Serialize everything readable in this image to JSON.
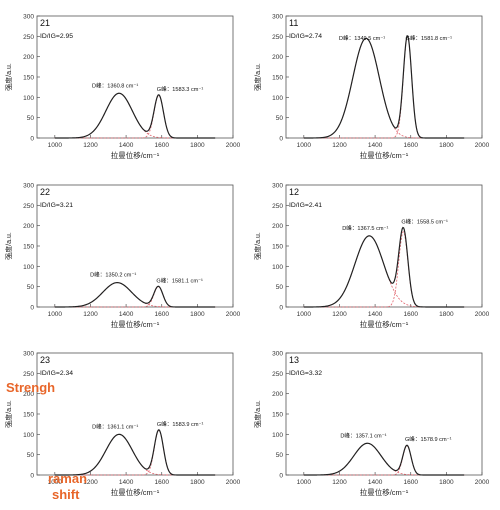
{
  "chart_data": [
    {
      "type": "line",
      "sample": "21",
      "ratio_label": "I_D/I_G=2.95",
      "ylabel": "强度/a.u.",
      "xlabel": "拉曼位移/cm⁻¹",
      "xlim": [
        900,
        2000
      ],
      "ylim": [
        0,
        300
      ],
      "xticks": [
        1000,
        1200,
        1400,
        1600,
        1800,
        2000
      ],
      "yticks": [
        0,
        50,
        100,
        150,
        200,
        250,
        300
      ],
      "series": [
        {
          "peak": "D",
          "center": 1360.8,
          "height": 110,
          "width": 175,
          "style": "dashed"
        },
        {
          "peak": "G",
          "center": 1583.3,
          "height": 105,
          "width": 62,
          "style": "dashed"
        }
      ],
      "labels": [
        {
          "peak": "D",
          "text": "D峰：1360.8 cm⁻¹"
        },
        {
          "peak": "G",
          "text": "G峰：1583.3 cm⁻¹"
        }
      ]
    },
    {
      "type": "line",
      "sample": "11",
      "ratio_label": "I_D/I_G=2.74",
      "ylabel": "强度/a.u.",
      "xlabel": "拉曼位移/cm⁻¹",
      "xlim": [
        900,
        2000
      ],
      "ylim": [
        0,
        300
      ],
      "xticks": [
        1000,
        1200,
        1400,
        1600,
        1800,
        2000
      ],
      "yticks": [
        0,
        50,
        100,
        150,
        200,
        250,
        300
      ],
      "series": [
        {
          "peak": "D",
          "center": 1349.5,
          "height": 245,
          "width": 175,
          "style": "dashed"
        },
        {
          "peak": "G",
          "center": 1581.8,
          "height": 250,
          "width": 55,
          "style": "dashed"
        }
      ],
      "labels": [
        {
          "peak": "D",
          "text": "D峰：1349.5 cm⁻¹"
        },
        {
          "peak": "G",
          "text": "G峰：1581.8 cm⁻¹"
        }
      ]
    },
    {
      "type": "line",
      "sample": "22",
      "ratio_label": "I_D/I_G=3.21",
      "ylabel": "强度/a.u.",
      "xlabel": "拉曼位移/cm⁻¹",
      "xlim": [
        900,
        2000
      ],
      "ylim": [
        0,
        300
      ],
      "xticks": [
        1000,
        1200,
        1400,
        1600,
        1800,
        2000
      ],
      "yticks": [
        0,
        50,
        100,
        150,
        200,
        250,
        300
      ],
      "series": [
        {
          "peak": "D",
          "center": 1350.2,
          "height": 60,
          "width": 190,
          "style": "dashed"
        },
        {
          "peak": "G",
          "center": 1581.1,
          "height": 50,
          "width": 60,
          "style": "dashed"
        }
      ],
      "labels": [
        {
          "peak": "D",
          "text": "D峰：1350.2 cm⁻¹"
        },
        {
          "peak": "G",
          "text": "G峰：1581.1 cm⁻¹"
        }
      ]
    },
    {
      "type": "line",
      "sample": "12",
      "ratio_label": "I_D/I_G=2.41",
      "ylabel": "强度/a.u.",
      "xlabel": "拉曼位移/cm⁻¹",
      "xlim": [
        900,
        2000
      ],
      "ylim": [
        0,
        300
      ],
      "xticks": [
        1000,
        1200,
        1400,
        1600,
        1800,
        2000
      ],
      "yticks": [
        0,
        50,
        100,
        150,
        200,
        250,
        300
      ],
      "series": [
        {
          "peak": "D",
          "center": 1367.5,
          "height": 175,
          "width": 190,
          "style": "dashed"
        },
        {
          "peak": "G",
          "center": 1558.5,
          "height": 185,
          "width": 60,
          "style": "dashed"
        }
      ],
      "labels": [
        {
          "peak": "D",
          "text": "D峰：1367.5 cm⁻¹"
        },
        {
          "peak": "G",
          "text": "G峰：1558.5 cm⁻¹"
        }
      ]
    },
    {
      "type": "line",
      "sample": "23",
      "ratio_label": "I_D/I_G=2.34",
      "ylabel": "强度/a.u.",
      "xlabel": "拉曼位移/cm⁻¹",
      "xlim": [
        900,
        2000
      ],
      "ylim": [
        0,
        300
      ],
      "xticks": [
        1000,
        1200,
        1400,
        1600,
        1800,
        2000
      ],
      "yticks": [
        0,
        50,
        100,
        150,
        200,
        250,
        300
      ],
      "series": [
        {
          "peak": "D",
          "center": 1361.1,
          "height": 100,
          "width": 175,
          "style": "dashed"
        },
        {
          "peak": "G",
          "center": 1583.9,
          "height": 110,
          "width": 60,
          "style": "dashed"
        }
      ],
      "labels": [
        {
          "peak": "D",
          "text": "D峰：1361.1 cm⁻¹"
        },
        {
          "peak": "G",
          "text": "G峰：1583.9 cm⁻¹"
        }
      ]
    },
    {
      "type": "line",
      "sample": "13",
      "ratio_label": "I_D/I_G=3.32",
      "ylabel": "强度/a.u.",
      "xlabel": "拉曼位移/cm⁻¹",
      "xlim": [
        900,
        2000
      ],
      "ylim": [
        0,
        300
      ],
      "xticks": [
        1000,
        1200,
        1400,
        1600,
        1800,
        2000
      ],
      "yticks": [
        0,
        50,
        100,
        150,
        200,
        250,
        300
      ],
      "series": [
        {
          "peak": "D",
          "center": 1357.1,
          "height": 78,
          "width": 180,
          "style": "dashed"
        },
        {
          "peak": "G",
          "center": 1578.9,
          "height": 72,
          "width": 55,
          "style": "dashed"
        }
      ],
      "labels": [
        {
          "peak": "D",
          "text": "D峰：1357.1 cm⁻¹"
        },
        {
          "peak": "G",
          "text": "G峰：1578.9 cm⁻¹"
        }
      ]
    }
  ],
  "annotations": {
    "strength": "Strengh",
    "raman": "raman",
    "shift": "shift"
  },
  "colors": {
    "fit_line": "#e0606a",
    "sum_line": "#222222",
    "annotation": "#e8662a"
  }
}
